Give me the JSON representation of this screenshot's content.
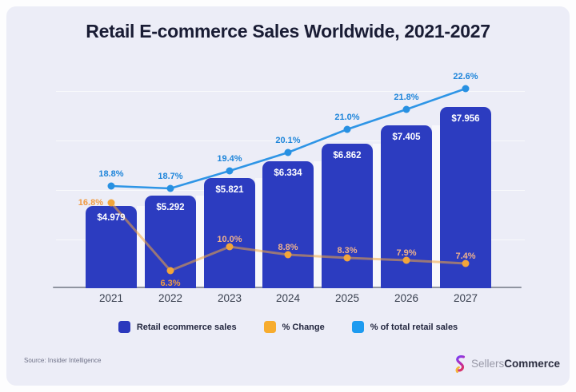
{
  "title": "Retail E-commerce Sales Worldwide, 2021-2027",
  "source_note": "Source: Insider Intelligence",
  "brand": {
    "name_light": "Sellers",
    "name_bold": "Commerce",
    "icon": "sellers-commerce-logo"
  },
  "legend": [
    {
      "label": "Retail ecommerce sales",
      "color": "#2b38bd"
    },
    {
      "label": "% Change",
      "color": "#f7ac2e"
    },
    {
      "label": "% of total retail sales",
      "color": "#1d9bf0"
    }
  ],
  "colors": {
    "page": "#fdfdfe",
    "background": "#ecedf7",
    "title": "#191c34",
    "bar": "#2c3cc0",
    "bar_label": "#ffffff",
    "gap": "#f7f7fb",
    "grid": "rgba(255,255,255,0.65)",
    "axis_line": "#8f94a0",
    "year_label": "#39404f",
    "total_line": "#2e95e6",
    "total_dot": "#2790e2",
    "total_label": "#1e85da",
    "change_line": "rgba(244,167,60,0.55)",
    "change_dot": "#f2a53a",
    "change_label_strong": "#ef9b43",
    "change_label_soft": "#eeb18c"
  },
  "chart_data": {
    "type": "bar",
    "title": "Retail E-commerce Sales Worldwide, 2021-2027",
    "categories": [
      "2021",
      "2022",
      "2023",
      "2024",
      "2025",
      "2026",
      "2027"
    ],
    "series": [
      {
        "name": "Retail ecommerce sales",
        "type": "bar",
        "unit": "trillion USD",
        "values": [
          4.979,
          5.292,
          5.821,
          6.334,
          6.862,
          7.405,
          7.956
        ],
        "labels": [
          "$4.979",
          "$5.292",
          "$5.821",
          "$6.334",
          "$6.862",
          "$7.405",
          "$7.956"
        ]
      },
      {
        "name": "% Change",
        "type": "line",
        "unit": "percent",
        "values": [
          16.8,
          6.3,
          10.0,
          8.8,
          8.3,
          7.9,
          7.4
        ],
        "labels": [
          "16.8%",
          "6.3%",
          "10.0%",
          "8.8%",
          "8.3%",
          "7.9%",
          "7.4%"
        ]
      },
      {
        "name": "% of total retail sales",
        "type": "line",
        "unit": "percent",
        "values": [
          18.8,
          18.7,
          19.4,
          20.1,
          21.0,
          21.8,
          22.6
        ],
        "labels": [
          "18.8%",
          "18.7%",
          "19.4%",
          "20.1%",
          "21.0%",
          "21.8%",
          "22.6%"
        ]
      }
    ],
    "xlabel": "",
    "ylabel": "",
    "legend_position": "bottom",
    "grid": "faint-horizontal"
  }
}
